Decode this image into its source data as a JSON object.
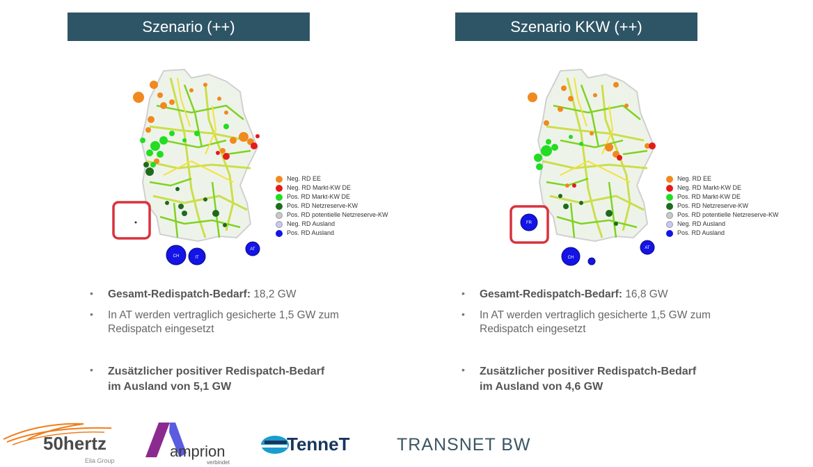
{
  "panels": [
    {
      "title": "Szenario (++)",
      "bullet1_bold": "Gesamt-Redispatch-Bedarf:",
      "bullet1_value": "18,2 GW",
      "bullet2_line1": "In AT werden vertraglich gesicherte 1,5 GW zum",
      "bullet2_line2": "Redispatch eingesetzt",
      "bullet3_line1": "Zusätzlicher positiver Redispatch-Bedarf",
      "bullet3_line2": "im Ausland von 5,1 GW",
      "ausland_labels": [
        "CH",
        "IT",
        "AT"
      ]
    },
    {
      "title": "Szenario KKW (++)",
      "bullet1_bold": "Gesamt-Redispatch-Bedarf:",
      "bullet1_value": "16,8 GW",
      "bullet2_line1": "In AT werden vertraglich gesicherte 1,5 GW zum",
      "bullet2_line2": "Redispatch eingesetzt",
      "bullet3_line1": "Zusätzlicher positiver Redispatch-Bedarf",
      "bullet3_line2": "im Ausland von 4,6 GW",
      "ausland_labels": [
        "FR",
        "CH",
        "AT"
      ]
    }
  ],
  "legend": [
    {
      "label": "Neg. RD EE",
      "color": "#f0891e"
    },
    {
      "label": "Neg. RD Markt-KW DE",
      "color": "#e31b1b"
    },
    {
      "label": "Pos. RD Markt-KW DE",
      "color": "#22dd22"
    },
    {
      "label": "Pos. RD Netzreserve-KW",
      "color": "#1e6b1e"
    },
    {
      "label": "Pos. RD potentielle Netzreserve-KW",
      "color": "#c8c8c8"
    },
    {
      "label": "Neg. RD Ausland",
      "color": "#c8c8f0"
    },
    {
      "label": "Pos. RD Ausland",
      "color": "#1414e6"
    }
  ],
  "logos": {
    "hertz_name": "50hertz",
    "hertz_sub": "Elia Group",
    "amprion_name": "amprion",
    "amprion_sub": "verbindet",
    "tennet_name": "TenneT",
    "transnet_name": "TRANSNET BW"
  }
}
